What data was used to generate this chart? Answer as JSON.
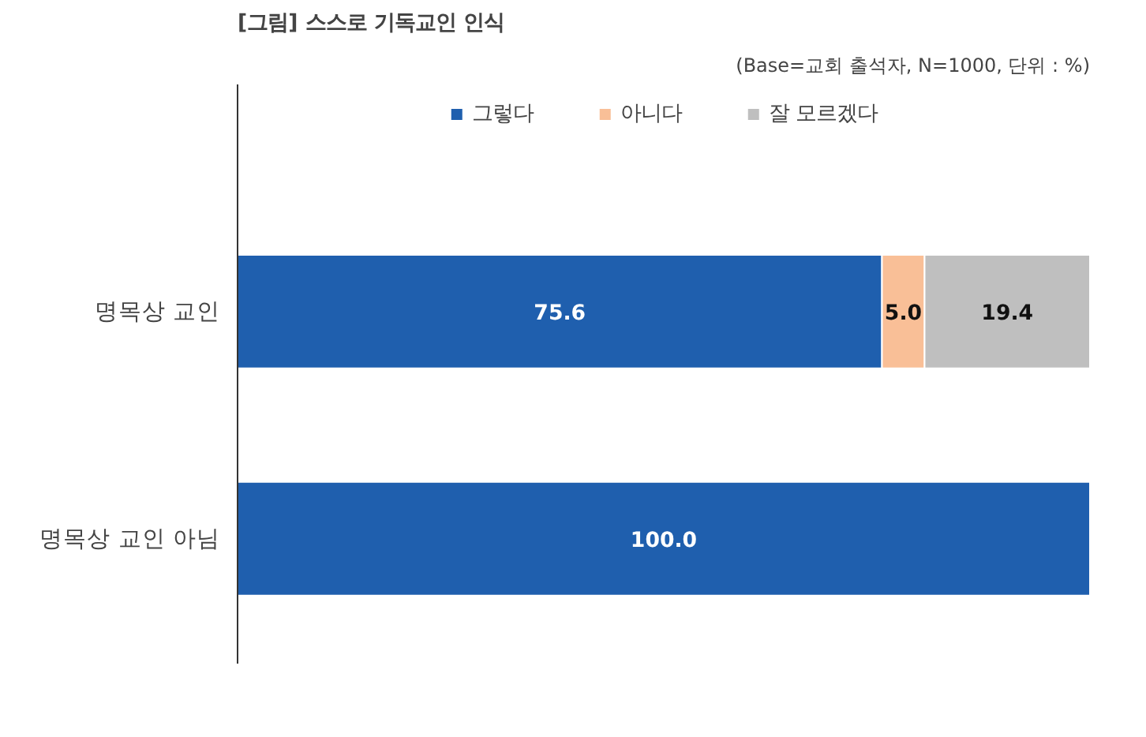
{
  "chart_data": {
    "type": "bar",
    "orientation": "horizontal",
    "stacked": true,
    "title": "[그림] 스스로 기독교인 인식",
    "annotations": [
      "(Base=교회 출석자, N=1000, 단위 : %)"
    ],
    "categories": [
      "명목상 교인",
      "명목상 교인 아님"
    ],
    "series": [
      {
        "name": "그렇다",
        "color": "#1f5fae",
        "values": [
          75.6,
          100.0
        ],
        "value_labels": [
          "75.6",
          "100.0"
        ]
      },
      {
        "name": "아니다",
        "color": "#f9bf97",
        "values": [
          5.0,
          null
        ],
        "value_labels": [
          "5.0",
          null
        ]
      },
      {
        "name": "잘 모르겠다",
        "color": "#bfbfbf",
        "values": [
          19.4,
          null
        ],
        "value_labels": [
          "19.4",
          null
        ]
      }
    ],
    "xlim": [
      0,
      100
    ],
    "legend": "top",
    "grid": false
  }
}
